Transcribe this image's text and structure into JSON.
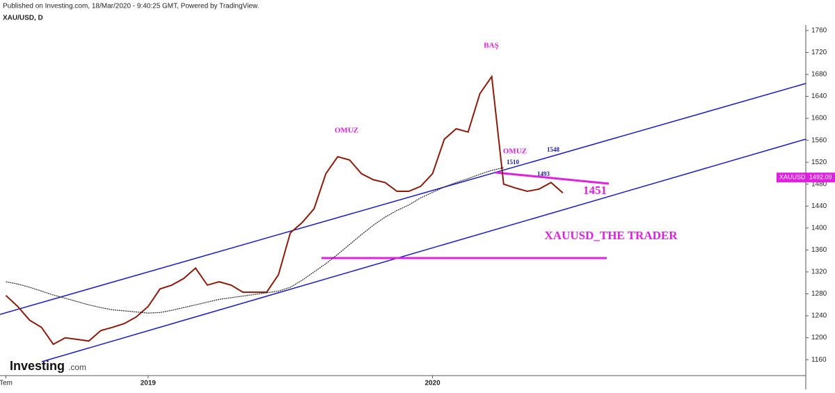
{
  "header": {
    "published": "Published on Investing.com, 18/Mar/2020 - 9:40:25 GMT, Powered by TradingView.",
    "symbol": "XAU/USD, D"
  },
  "logo": {
    "brand": "Investing",
    "suffix": ".com"
  },
  "chart_data": {
    "type": "line",
    "categories": [
      "Tem",
      null,
      null,
      null,
      null,
      null,
      null,
      null,
      null,
      null,
      null,
      null,
      "2019",
      null,
      null,
      null,
      null,
      null,
      null,
      null,
      null,
      null,
      null,
      null,
      null,
      null,
      null,
      null,
      null,
      null,
      null,
      null,
      null,
      null,
      null,
      null,
      "2020",
      null,
      null,
      null,
      null,
      null,
      null,
      null,
      null,
      null,
      null,
      null,
      null,
      null,
      null,
      null,
      null,
      null,
      null,
      null,
      null,
      null,
      null,
      null,
      null,
      null,
      null,
      null,
      null,
      null,
      null,
      null
    ],
    "series": [
      {
        "color": "#8b1a0a",
        "values": [
          1277,
          1257,
          1232,
          1219,
          1188,
          1200,
          1197,
          1194,
          1213,
          1219,
          1226,
          1238,
          1257,
          1289,
          1296,
          1308,
          1327,
          1296,
          1302,
          1296,
          1283,
          1283,
          1283,
          1315,
          1391,
          1410,
          1435,
          1499,
          1530,
          1524,
          1499,
          1488,
          1483,
          1467,
          1467,
          1476,
          1499,
          1562,
          1581,
          1575,
          1645,
          1676,
          1480,
          1473,
          1467,
          1471,
          1483,
          1464,
          null,
          null,
          null,
          null,
          null,
          null,
          null,
          null,
          null,
          null,
          null,
          null,
          null,
          null,
          null,
          null,
          null,
          null,
          null,
          null
        ]
      },
      {
        "color": "#222222",
        "values": [
          1302,
          1298,
          1292,
          1285,
          1278,
          1272,
          1266,
          1260,
          1255,
          1251,
          1249,
          1247,
          1245,
          1246,
          1250,
          1255,
          1260,
          1265,
          1270,
          1273,
          1276,
          1279,
          1282,
          1285,
          1292,
          1305,
          1320,
          1335,
          1352,
          1370,
          1388,
          1405,
          1420,
          1432,
          1442,
          1455,
          1465,
          1475,
          1483,
          1490,
          1498,
          1505,
          1510,
          null,
          null,
          null,
          null,
          null,
          null,
          null,
          null,
          null,
          null,
          null,
          null,
          null,
          null,
          null,
          null,
          null,
          null,
          null,
          null,
          null,
          null,
          null,
          null,
          null
        ]
      }
    ],
    "ylim": [
      1131,
      1770
    ],
    "yticks": [
      1160,
      1200,
      1240,
      1280,
      1320,
      1360,
      1400,
      1440,
      1480,
      1520,
      1560,
      1600,
      1640,
      1680,
      1720,
      1760
    ],
    "last_name": "XAUUSD",
    "last_value": 1492.09,
    "last_color": "#e020e0",
    "annotations": [
      "BAŞ",
      "OMUZ",
      "OMUZ",
      "1548",
      "1510",
      "1493",
      "1451",
      "XAUUSD_THE TRADER"
    ]
  }
}
